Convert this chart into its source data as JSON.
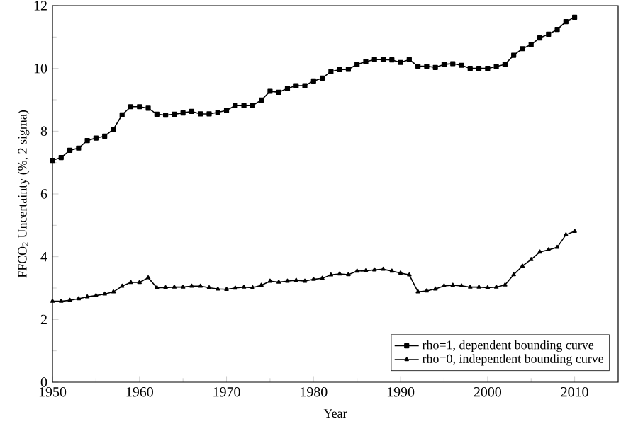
{
  "chart_data": {
    "type": "line",
    "xlabel": "Year",
    "ylabel": "FFCO$_{2}$ Uncertainty (%, 2 sigma)",
    "x": [
      1950,
      1951,
      1952,
      1953,
      1954,
      1955,
      1956,
      1957,
      1958,
      1959,
      1960,
      1961,
      1962,
      1963,
      1964,
      1965,
      1966,
      1967,
      1968,
      1969,
      1970,
      1971,
      1972,
      1973,
      1974,
      1975,
      1976,
      1977,
      1978,
      1979,
      1980,
      1981,
      1982,
      1983,
      1984,
      1985,
      1986,
      1987,
      1988,
      1989,
      1990,
      1991,
      1992,
      1993,
      1994,
      1995,
      1996,
      1997,
      1998,
      1999,
      2000,
      2001,
      2002,
      2003,
      2004,
      2005,
      2006,
      2007,
      2008,
      2009,
      2010
    ],
    "series": [
      {
        "name": "rho=1, dependent bounding curve",
        "color": "#000000",
        "marker": "square",
        "values": [
          7.07,
          7.16,
          7.39,
          7.46,
          7.7,
          7.78,
          7.84,
          8.06,
          8.52,
          8.78,
          8.78,
          8.73,
          8.54,
          8.51,
          8.54,
          8.58,
          8.63,
          8.55,
          8.55,
          8.6,
          8.66,
          8.82,
          8.81,
          8.82,
          8.99,
          9.27,
          9.24,
          9.36,
          9.45,
          9.45,
          9.6,
          9.69,
          9.9,
          9.96,
          9.97,
          10.13,
          10.21,
          10.28,
          10.28,
          10.27,
          10.19,
          10.28,
          10.07,
          10.07,
          10.03,
          10.13,
          10.15,
          10.1,
          10.0,
          10.0,
          10.0,
          10.06,
          10.13,
          10.42,
          10.63,
          10.76,
          10.97,
          11.09,
          11.24,
          11.49,
          11.63
        ]
      },
      {
        "name": "rho=0, independent bounding curve",
        "color": "#000000",
        "marker": "triangle",
        "values": [
          2.58,
          2.58,
          2.61,
          2.66,
          2.72,
          2.76,
          2.81,
          2.88,
          3.06,
          3.18,
          3.18,
          3.33,
          3.01,
          3.01,
          3.03,
          3.03,
          3.06,
          3.06,
          3.01,
          2.97,
          2.96,
          3.0,
          3.03,
          3.01,
          3.09,
          3.22,
          3.19,
          3.22,
          3.25,
          3.22,
          3.28,
          3.31,
          3.42,
          3.45,
          3.43,
          3.54,
          3.55,
          3.58,
          3.6,
          3.54,
          3.48,
          3.42,
          2.88,
          2.91,
          2.97,
          3.07,
          3.09,
          3.07,
          3.03,
          3.03,
          3.01,
          3.03,
          3.1,
          3.43,
          3.7,
          3.91,
          4.15,
          4.22,
          4.3,
          4.7,
          4.81
        ]
      }
    ],
    "xlim": [
      1950,
      2015
    ],
    "ylim": [
      0,
      12
    ],
    "xticks": [
      1950,
      1960,
      1970,
      1980,
      1990,
      2000,
      2010
    ],
    "yticks": [
      0,
      2,
      4,
      6,
      8,
      10,
      12
    ],
    "legend": "bottom right",
    "line_style": "solid",
    "grid": false
  }
}
